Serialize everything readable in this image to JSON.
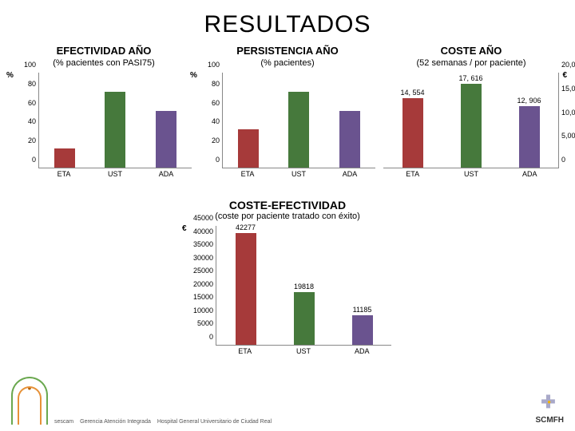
{
  "title": "RESULTADOS",
  "colors": {
    "eta": "#a63a3a",
    "ust": "#46793c",
    "ada": "#6a538f",
    "axis": "#888888",
    "text": "#000000"
  },
  "efectividad": {
    "title": "EFECTIVIDAD AÑO",
    "subtitle": "(% pacientes con PASI75)",
    "y_symbol": "%",
    "ylim": [
      0,
      100
    ],
    "ytick_step": 20,
    "categories": [
      "ETA",
      "UST",
      "ADA"
    ],
    "values": [
      20,
      80,
      60
    ]
  },
  "persistencia": {
    "title": "PERSISTENCIA AÑO",
    "subtitle": "(% pacientes)",
    "y_symbol": "%",
    "ylim": [
      0,
      100
    ],
    "ytick_step": 20,
    "categories": [
      "ETA",
      "UST",
      "ADA"
    ],
    "values": [
      40,
      80,
      60
    ]
  },
  "coste": {
    "title": "COSTE AÑO",
    "subtitle": "(52 semanas / por paciente)",
    "y_symbol": "€",
    "ylim": [
      0,
      20000
    ],
    "ytick_step": 5000,
    "tick_labels": [
      "0",
      "5,000",
      "10,000",
      "15,000",
      "20,000"
    ],
    "categories": [
      "ETA",
      "UST",
      "ADA"
    ],
    "values": [
      14554,
      17616,
      12906
    ],
    "value_labels": [
      "14, 554",
      "17, 616",
      "12, 906"
    ]
  },
  "coste_efectividad": {
    "title": "COSTE-EFECTIVIDAD",
    "subtitle": "(coste por paciente tratado con éxito)",
    "y_symbol": "€",
    "ylim": [
      0,
      45000
    ],
    "ytick_step": 5000,
    "categories": [
      "ETA",
      "UST",
      "ADA"
    ],
    "values": [
      42277,
      19818,
      11185
    ],
    "value_labels": [
      "42277",
      "19818",
      "11185"
    ]
  },
  "logos": {
    "sescam": "sescam",
    "gerencia": "Gerencia\nAtención\nIntegrada",
    "hospital": "Hospital General\nUniversitario\nde Ciudad Real",
    "farmacia": "Servicio de Farmacia",
    "scmfh": "SCMFH"
  }
}
